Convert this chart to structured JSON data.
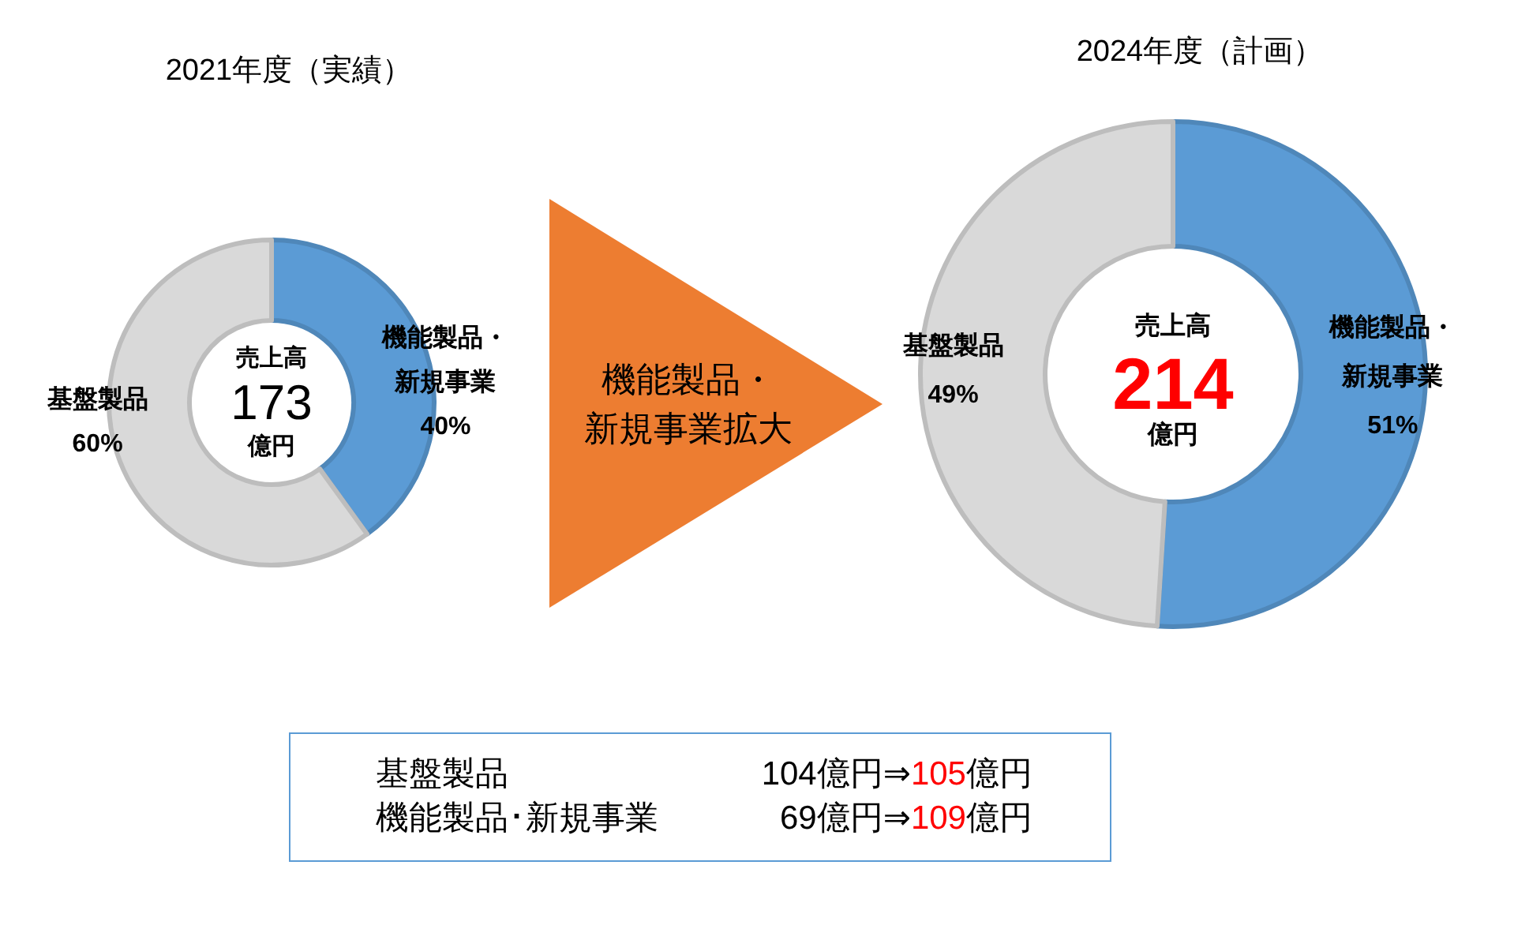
{
  "chart_data": [
    {
      "type": "donut",
      "title": "2021年度（実績）",
      "categories": [
        "機能製品・新規事業",
        "基盤製品"
      ],
      "values": [
        40,
        60
      ],
      "colors": [
        "#5b9bd5",
        "#d9d9d9"
      ],
      "value_labels": [
        "40%",
        "60%"
      ],
      "annotations": [
        "売上高",
        "173",
        "億円"
      ]
    },
    {
      "type": "other",
      "annotations": [
        "機能製品・新規事業拡大"
      ]
    },
    {
      "type": "donut",
      "title": "2024年度（計画）",
      "categories": [
        "機能製品・新規事業",
        "基盤製品"
      ],
      "values": [
        51,
        49
      ],
      "colors": [
        "#5b9bd5",
        "#d9d9d9"
      ],
      "value_labels": [
        "51%",
        "49%"
      ],
      "annotations": [
        "売上高",
        "214",
        "億円"
      ]
    },
    {
      "type": "other",
      "annotations": [
        "基盤製品",
        "104億円⇒105億円",
        "機能製品･新規事業",
        "69億円⇒109億円"
      ]
    }
  ]
}
